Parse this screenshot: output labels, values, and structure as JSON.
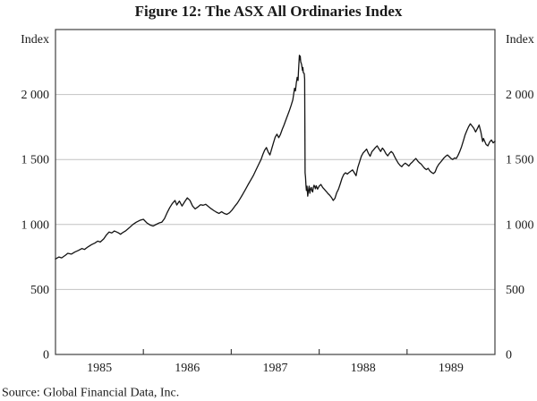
{
  "title": "Figure 12: The ASX All Ordinaries Index",
  "source_note": "Source: Global Financial Data, Inc.",
  "y_axis_left": {
    "title": "Index",
    "ticks": [
      "2 000",
      "1 500",
      "1 000",
      "500",
      "0"
    ]
  },
  "y_axis_right": {
    "title": "Index",
    "ticks": [
      "2 000",
      "1 500",
      "1 000",
      "500",
      "0"
    ]
  },
  "x_axis": {
    "labels": [
      "1985",
      "1986",
      "1987",
      "1988",
      "1989"
    ]
  },
  "colors": {
    "line": "#141414",
    "grid": "#c2c2c2",
    "frame": "#3f3f3f",
    "text": "#1a1a1a",
    "background": "#ffffff"
  },
  "chart_data": {
    "type": "line",
    "title": "Figure 12: The ASX All Ordinaries Index",
    "xlabel": "",
    "ylabel": "Index",
    "x_range": [
      1985,
      1990
    ],
    "ylim": [
      0,
      2500
    ],
    "y_gridline_values": [
      500,
      1000,
      1500,
      2000
    ],
    "y_tick_labels_both_sides": true,
    "x_tick_years": [
      1986,
      1987,
      1988,
      1989
    ],
    "grid": "horizontal-only",
    "legend": "none",
    "annotations": [
      "vertical collapse = October 1987 crash, peak ~2300 falling to ~1200"
    ],
    "series": [
      {
        "name": "ASX All Ordinaries Index",
        "points": [
          [
            1985.0,
            735
          ],
          [
            1985.04,
            750
          ],
          [
            1985.07,
            743
          ],
          [
            1985.11,
            762
          ],
          [
            1985.14,
            778
          ],
          [
            1985.18,
            772
          ],
          [
            1985.22,
            788
          ],
          [
            1985.26,
            800
          ],
          [
            1985.3,
            815
          ],
          [
            1985.33,
            808
          ],
          [
            1985.37,
            828
          ],
          [
            1985.41,
            845
          ],
          [
            1985.45,
            858
          ],
          [
            1985.48,
            872
          ],
          [
            1985.51,
            865
          ],
          [
            1985.55,
            890
          ],
          [
            1985.58,
            920
          ],
          [
            1985.61,
            942
          ],
          [
            1985.64,
            935
          ],
          [
            1985.67,
            950
          ],
          [
            1985.71,
            938
          ],
          [
            1985.74,
            925
          ],
          [
            1985.77,
            940
          ],
          [
            1985.8,
            952
          ],
          [
            1985.84,
            975
          ],
          [
            1985.88,
            1000
          ],
          [
            1985.92,
            1018
          ],
          [
            1985.96,
            1032
          ],
          [
            1986.0,
            1040
          ],
          [
            1986.04,
            1012
          ],
          [
            1986.08,
            995
          ],
          [
            1986.11,
            988
          ],
          [
            1986.15,
            1002
          ],
          [
            1986.18,
            1012
          ],
          [
            1986.21,
            1018
          ],
          [
            1986.24,
            1045
          ],
          [
            1986.27,
            1090
          ],
          [
            1986.3,
            1130
          ],
          [
            1986.33,
            1162
          ],
          [
            1986.36,
            1185
          ],
          [
            1986.38,
            1150
          ],
          [
            1986.41,
            1180
          ],
          [
            1986.44,
            1142
          ],
          [
            1986.47,
            1175
          ],
          [
            1986.5,
            1205
          ],
          [
            1986.53,
            1185
          ],
          [
            1986.56,
            1142
          ],
          [
            1986.59,
            1120
          ],
          [
            1986.62,
            1135
          ],
          [
            1986.65,
            1152
          ],
          [
            1986.68,
            1148
          ],
          [
            1986.71,
            1155
          ],
          [
            1986.74,
            1138
          ],
          [
            1986.77,
            1122
          ],
          [
            1986.8,
            1108
          ],
          [
            1986.83,
            1095
          ],
          [
            1986.86,
            1085
          ],
          [
            1986.89,
            1098
          ],
          [
            1986.92,
            1085
          ],
          [
            1986.95,
            1078
          ],
          [
            1986.98,
            1090
          ],
          [
            1987.01,
            1112
          ],
          [
            1987.04,
            1140
          ],
          [
            1987.07,
            1165
          ],
          [
            1987.1,
            1198
          ],
          [
            1987.13,
            1232
          ],
          [
            1987.16,
            1268
          ],
          [
            1987.19,
            1305
          ],
          [
            1987.22,
            1340
          ],
          [
            1987.25,
            1375
          ],
          [
            1987.28,
            1418
          ],
          [
            1987.31,
            1460
          ],
          [
            1987.34,
            1502
          ],
          [
            1987.36,
            1540
          ],
          [
            1987.38,
            1572
          ],
          [
            1987.4,
            1592
          ],
          [
            1987.42,
            1558
          ],
          [
            1987.44,
            1535
          ],
          [
            1987.46,
            1582
          ],
          [
            1987.48,
            1628
          ],
          [
            1987.5,
            1672
          ],
          [
            1987.52,
            1695
          ],
          [
            1987.54,
            1668
          ],
          [
            1987.56,
            1694
          ],
          [
            1987.58,
            1732
          ],
          [
            1987.6,
            1765
          ],
          [
            1987.62,
            1802
          ],
          [
            1987.64,
            1838
          ],
          [
            1987.66,
            1874
          ],
          [
            1987.68,
            1914
          ],
          [
            1987.7,
            1958
          ],
          [
            1987.71,
            2002
          ],
          [
            1987.72,
            2048
          ],
          [
            1987.73,
            2028
          ],
          [
            1987.74,
            2088
          ],
          [
            1987.75,
            2132
          ],
          [
            1987.76,
            2108
          ],
          [
            1987.765,
            2182
          ],
          [
            1987.77,
            2242
          ],
          [
            1987.775,
            2302
          ],
          [
            1987.78,
            2268
          ],
          [
            1987.785,
            2295
          ],
          [
            1987.79,
            2252
          ],
          [
            1987.8,
            2232
          ],
          [
            1987.81,
            2185
          ],
          [
            1987.815,
            2208
          ],
          [
            1987.82,
            2168
          ],
          [
            1987.83,
            2162
          ],
          [
            1987.835,
            2120
          ],
          [
            1987.84,
            1398
          ],
          [
            1987.845,
            1362
          ],
          [
            1987.85,
            1302
          ],
          [
            1987.855,
            1262
          ],
          [
            1987.862,
            1295
          ],
          [
            1987.87,
            1218
          ],
          [
            1987.878,
            1262
          ],
          [
            1987.886,
            1295
          ],
          [
            1987.894,
            1240
          ],
          [
            1987.902,
            1272
          ],
          [
            1987.91,
            1285
          ],
          [
            1987.918,
            1260
          ],
          [
            1987.926,
            1250
          ],
          [
            1987.934,
            1285
          ],
          [
            1987.942,
            1302
          ],
          [
            1987.95,
            1290
          ],
          [
            1987.958,
            1275
          ],
          [
            1987.966,
            1298
          ],
          [
            1987.974,
            1285
          ],
          [
            1987.982,
            1272
          ],
          [
            1987.99,
            1282
          ],
          [
            1988.0,
            1295
          ],
          [
            1988.02,
            1308
          ],
          [
            1988.04,
            1285
          ],
          [
            1988.06,
            1270
          ],
          [
            1988.08,
            1255
          ],
          [
            1988.1,
            1238
          ],
          [
            1988.12,
            1225
          ],
          [
            1988.14,
            1208
          ],
          [
            1988.16,
            1185
          ],
          [
            1988.18,
            1202
          ],
          [
            1988.2,
            1245
          ],
          [
            1988.22,
            1272
          ],
          [
            1988.24,
            1312
          ],
          [
            1988.26,
            1355
          ],
          [
            1988.28,
            1385
          ],
          [
            1988.3,
            1398
          ],
          [
            1988.32,
            1388
          ],
          [
            1988.34,
            1400
          ],
          [
            1988.36,
            1410
          ],
          [
            1988.38,
            1420
          ],
          [
            1988.4,
            1398
          ],
          [
            1988.42,
            1375
          ],
          [
            1988.44,
            1440
          ],
          [
            1988.46,
            1482
          ],
          [
            1988.48,
            1525
          ],
          [
            1988.5,
            1550
          ],
          [
            1988.52,
            1565
          ],
          [
            1988.54,
            1580
          ],
          [
            1988.56,
            1548
          ],
          [
            1988.58,
            1525
          ],
          [
            1988.6,
            1560
          ],
          [
            1988.62,
            1575
          ],
          [
            1988.64,
            1592
          ],
          [
            1988.66,
            1605
          ],
          [
            1988.68,
            1582
          ],
          [
            1988.7,
            1562
          ],
          [
            1988.72,
            1588
          ],
          [
            1988.74,
            1570
          ],
          [
            1988.76,
            1545
          ],
          [
            1988.78,
            1528
          ],
          [
            1988.8,
            1548
          ],
          [
            1988.82,
            1562
          ],
          [
            1988.84,
            1548
          ],
          [
            1988.86,
            1520
          ],
          [
            1988.88,
            1495
          ],
          [
            1988.9,
            1472
          ],
          [
            1988.92,
            1455
          ],
          [
            1988.94,
            1445
          ],
          [
            1988.96,
            1462
          ],
          [
            1988.98,
            1472
          ],
          [
            1989.0,
            1462
          ],
          [
            1989.02,
            1450
          ],
          [
            1989.04,
            1468
          ],
          [
            1989.06,
            1480
          ],
          [
            1989.08,
            1495
          ],
          [
            1989.1,
            1508
          ],
          [
            1989.12,
            1490
          ],
          [
            1989.14,
            1475
          ],
          [
            1989.16,
            1465
          ],
          [
            1989.18,
            1448
          ],
          [
            1989.2,
            1432
          ],
          [
            1989.22,
            1422
          ],
          [
            1989.24,
            1432
          ],
          [
            1989.26,
            1412
          ],
          [
            1989.28,
            1400
          ],
          [
            1989.3,
            1392
          ],
          [
            1989.32,
            1405
          ],
          [
            1989.34,
            1440
          ],
          [
            1989.36,
            1462
          ],
          [
            1989.38,
            1478
          ],
          [
            1989.4,
            1495
          ],
          [
            1989.42,
            1512
          ],
          [
            1989.44,
            1525
          ],
          [
            1989.46,
            1535
          ],
          [
            1989.48,
            1522
          ],
          [
            1989.5,
            1508
          ],
          [
            1989.52,
            1500
          ],
          [
            1989.54,
            1512
          ],
          [
            1989.56,
            1508
          ],
          [
            1989.58,
            1532
          ],
          [
            1989.6,
            1562
          ],
          [
            1989.62,
            1598
          ],
          [
            1989.64,
            1642
          ],
          [
            1989.66,
            1688
          ],
          [
            1989.68,
            1722
          ],
          [
            1989.7,
            1752
          ],
          [
            1989.72,
            1775
          ],
          [
            1989.74,
            1758
          ],
          [
            1989.76,
            1740
          ],
          [
            1989.78,
            1712
          ],
          [
            1989.8,
            1738
          ],
          [
            1989.82,
            1765
          ],
          [
            1989.84,
            1712
          ],
          [
            1989.86,
            1638
          ],
          [
            1989.87,
            1662
          ],
          [
            1989.88,
            1645
          ],
          [
            1989.9,
            1615
          ],
          [
            1989.92,
            1605
          ],
          [
            1989.94,
            1635
          ],
          [
            1989.96,
            1650
          ],
          [
            1989.98,
            1628
          ],
          [
            1990.0,
            1640
          ]
        ]
      }
    ]
  }
}
